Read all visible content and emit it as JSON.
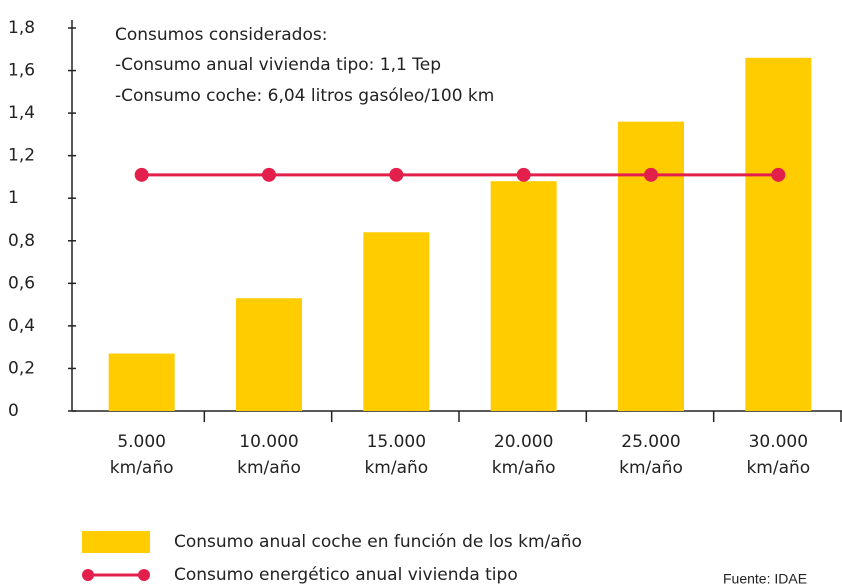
{
  "chart_data": {
    "type": "bar",
    "annotations": [
      "Consumos considerados:",
      "-Consumo anual vivienda tipo: 1,1 Tep",
      "-Consumo coche: 6,04 litros gasóleo/100 km"
    ],
    "categories": [
      [
        "5.000",
        "km/año"
      ],
      [
        "10.000",
        "km/año"
      ],
      [
        "15.000",
        "km/año"
      ],
      [
        "20.000",
        "km/año"
      ],
      [
        "25.000",
        "km/año"
      ],
      [
        "30.000",
        "km/año"
      ]
    ],
    "series": [
      {
        "name": "Consumo anual coche en función de los km/año",
        "type": "bar",
        "color": "#ffcc00",
        "values": [
          0.27,
          0.53,
          0.84,
          1.08,
          1.36,
          1.66
        ]
      },
      {
        "name": "Consumo energético anual vivienda tipo",
        "type": "line",
        "color": "#e31f4b",
        "values": [
          1.11,
          1.11,
          1.11,
          1.11,
          1.11,
          1.11
        ]
      }
    ],
    "ylim": [
      0,
      1.8
    ],
    "yticks": [
      0,
      {
        "value": 0.2,
        "label": "0,2"
      },
      {
        "value": 0.4,
        "label": "0,4"
      },
      {
        "value": 0.6,
        "label": "0,6"
      },
      {
        "value": 0.8,
        "label": "0,8"
      },
      1,
      {
        "value": 1.2,
        "label": "1,2"
      },
      {
        "value": 1.4,
        "label": "1,4"
      },
      {
        "value": 1.6,
        "label": "1,6"
      },
      {
        "value": 1.8,
        "label": "1,8"
      }
    ],
    "source": "Fuente: IDAE"
  }
}
